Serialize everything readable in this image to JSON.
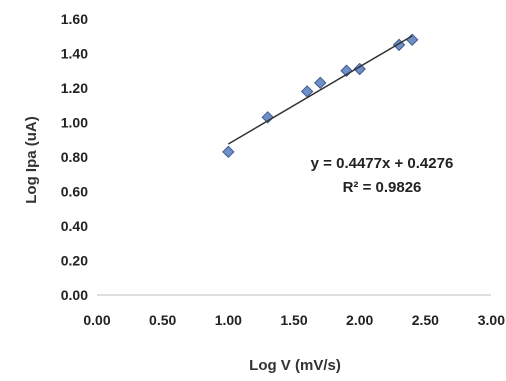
{
  "chart_data": {
    "type": "scatter",
    "title": "",
    "xlabel": "Log V (mV/s)",
    "ylabel": "Log Ipa (uA)",
    "xlim": [
      0,
      3
    ],
    "ylim": [
      0,
      1.6
    ],
    "x_ticks": [
      "0.00",
      "0.50",
      "1.00",
      "1.50",
      "2.00",
      "2.50",
      "3.00"
    ],
    "y_ticks": [
      "0.00",
      "0.20",
      "0.40",
      "0.60",
      "0.80",
      "1.00",
      "1.20",
      "1.40",
      "1.60"
    ],
    "grid": false,
    "legend": "none",
    "series": [
      {
        "marker": "diamond",
        "color": "#6f8fc9",
        "points": [
          {
            "x": 1.0,
            "y": 0.83
          },
          {
            "x": 1.3,
            "y": 1.03
          },
          {
            "x": 1.6,
            "y": 1.18
          },
          {
            "x": 1.7,
            "y": 1.23
          },
          {
            "x": 1.9,
            "y": 1.3
          },
          {
            "x": 2.0,
            "y": 1.31
          },
          {
            "x": 2.3,
            "y": 1.45
          },
          {
            "x": 2.4,
            "y": 1.48
          }
        ]
      }
    ],
    "trendline": {
      "slope": 0.4477,
      "intercept": 0.4276,
      "x_range": [
        1.0,
        2.4
      ],
      "color": "#333333"
    },
    "annotations": {
      "equation": "y = 0.4477x + 0.4276",
      "r2_label": "R² = 0.9826"
    }
  }
}
